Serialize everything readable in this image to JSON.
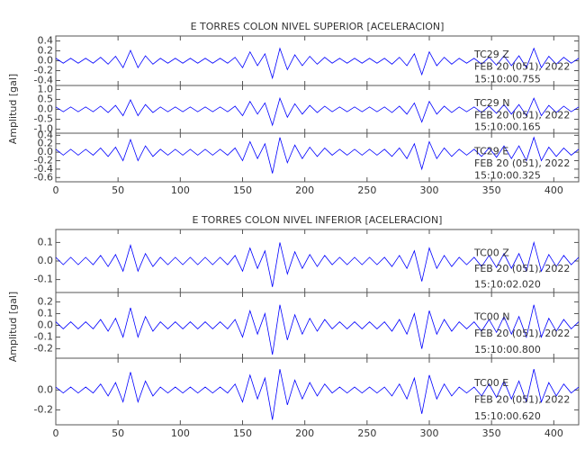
{
  "chart_data": [
    {
      "type": "line",
      "title": "E TORRES COLON NIVEL SUPERIOR [ACELERACION]",
      "y_label": "Amplitud [gal]",
      "x": [
        0,
        6,
        12,
        18,
        24,
        30,
        36,
        42,
        48,
        54,
        60,
        66,
        72,
        78,
        84,
        90,
        96,
        102,
        108,
        114,
        120,
        126,
        132,
        138,
        144,
        150,
        156,
        162,
        168,
        174,
        180,
        186,
        192,
        198,
        204,
        210,
        216,
        222,
        228,
        234,
        240,
        246,
        252,
        258,
        264,
        270,
        276,
        282,
        288,
        294,
        300,
        306,
        312,
        318,
        324,
        330,
        336,
        342,
        348,
        354,
        360,
        366,
        372,
        378,
        384,
        390,
        396,
        402,
        408,
        414,
        420
      ],
      "xlim": [
        0,
        420
      ],
      "xticks": [
        0,
        50,
        100,
        150,
        200,
        250,
        300,
        350,
        400
      ],
      "series": [
        {
          "name": "TC29    Z",
          "date": "FEB 20 (051), 2022",
          "time": "15:10:00.755",
          "color": "#0000ff",
          "ylim": [
            -0.5,
            0.5
          ],
          "yticks": [
            0.4,
            0.2,
            {
              "value": 0,
              "label": "0.0"
            },
            -0.2,
            -0.4
          ],
          "values": [
            0.05,
            -0.05,
            0.05,
            -0.05,
            0.05,
            -0.05,
            0.07,
            -0.07,
            0.09,
            -0.14,
            0.21,
            -0.14,
            0.1,
            -0.07,
            0.05,
            -0.05,
            0.05,
            -0.05,
            0.05,
            -0.05,
            0.05,
            -0.05,
            0.05,
            -0.05,
            0.07,
            -0.14,
            0.18,
            -0.1,
            0.14,
            -0.35,
            0.25,
            -0.18,
            0.12,
            -0.1,
            0.09,
            -0.07,
            0.07,
            -0.05,
            0.05,
            -0.05,
            0.05,
            -0.05,
            0.05,
            -0.05,
            0.05,
            -0.07,
            0.07,
            -0.1,
            0.14,
            -0.28,
            0.18,
            -0.1,
            0.07,
            -0.07,
            0.05,
            -0.05,
            0.05,
            -0.07,
            0.07,
            -0.09,
            0.1,
            -0.1,
            0.1,
            -0.14,
            0.25,
            -0.14,
            0.09,
            -0.07,
            0.07,
            -0.05,
            0.05
          ]
        },
        {
          "name": "TC29    N",
          "date": "FEB 20 (051), 2022",
          "time": "15:10:00.165",
          "color": "#0000ff",
          "ylim": [
            -1.2,
            1.2
          ],
          "yticks": [
            {
              "value": 1,
              "label": "1.0"
            },
            0.5,
            {
              "value": 0,
              "label": "0.0"
            },
            -0.5,
            {
              "value": -1,
              "label": "-1.0"
            }
          ],
          "values": [
            0.12,
            -0.12,
            0.12,
            -0.12,
            0.12,
            -0.12,
            0.16,
            -0.16,
            0.2,
            -0.32,
            0.48,
            -0.32,
            0.24,
            -0.16,
            0.12,
            -0.12,
            0.12,
            -0.12,
            0.12,
            -0.12,
            0.12,
            -0.12,
            0.12,
            -0.12,
            0.16,
            -0.32,
            0.4,
            -0.24,
            0.32,
            -0.8,
            0.56,
            -0.4,
            0.28,
            -0.24,
            0.2,
            -0.16,
            0.16,
            -0.12,
            0.12,
            -0.12,
            0.12,
            -0.12,
            0.12,
            -0.12,
            0.12,
            -0.16,
            0.16,
            -0.24,
            0.32,
            -0.64,
            0.4,
            -0.24,
            0.16,
            -0.16,
            0.12,
            -0.12,
            0.12,
            -0.16,
            0.16,
            -0.2,
            0.24,
            -0.24,
            0.24,
            -0.32,
            0.56,
            -0.32,
            0.2,
            -0.16,
            0.16,
            -0.12,
            0.12
          ]
        },
        {
          "name": "TC29    E",
          "date": "FEB 20 (051), 2022",
          "time": "15:10:00.325",
          "color": "#0000ff",
          "ylim": [
            -0.7,
            0.45
          ],
          "yticks": [
            0.4,
            0.2,
            {
              "value": 0,
              "label": "0.0"
            },
            -0.2,
            -0.4,
            -0.6
          ],
          "values": [
            0.07,
            -0.07,
            0.07,
            -0.07,
            0.07,
            -0.07,
            0.1,
            -0.1,
            0.12,
            -0.2,
            0.3,
            -0.2,
            0.15,
            -0.1,
            0.07,
            -0.07,
            0.07,
            -0.07,
            0.07,
            -0.07,
            0.07,
            -0.07,
            0.07,
            -0.07,
            0.1,
            -0.2,
            0.25,
            -0.15,
            0.2,
            -0.5,
            0.35,
            -0.25,
            0.17,
            -0.15,
            0.12,
            -0.1,
            0.1,
            -0.07,
            0.07,
            -0.07,
            0.07,
            -0.07,
            0.07,
            -0.07,
            0.07,
            -0.1,
            0.1,
            -0.15,
            0.2,
            -0.4,
            0.25,
            -0.15,
            0.1,
            -0.1,
            0.07,
            -0.07,
            0.07,
            -0.1,
            0.1,
            -0.12,
            0.15,
            -0.15,
            0.15,
            -0.2,
            0.35,
            -0.2,
            0.12,
            -0.1,
            0.1,
            -0.07,
            0.07
          ]
        }
      ]
    },
    {
      "type": "line",
      "title": "E TORRES COLON NIVEL INFERIOR [ACELERACION]",
      "y_label": "Amplitud [gal]",
      "x": [
        0,
        6,
        12,
        18,
        24,
        30,
        36,
        42,
        48,
        54,
        60,
        66,
        72,
        78,
        84,
        90,
        96,
        102,
        108,
        114,
        120,
        126,
        132,
        138,
        144,
        150,
        156,
        162,
        168,
        174,
        180,
        186,
        192,
        198,
        204,
        210,
        216,
        222,
        228,
        234,
        240,
        246,
        252,
        258,
        264,
        270,
        276,
        282,
        288,
        294,
        300,
        306,
        312,
        318,
        324,
        330,
        336,
        342,
        348,
        354,
        360,
        366,
        372,
        378,
        384,
        390,
        396,
        402,
        408,
        414,
        420
      ],
      "xlim": [
        0,
        420
      ],
      "xticks": [
        0,
        50,
        100,
        150,
        200,
        250,
        300,
        350,
        400
      ],
      "series": [
        {
          "name": "TC00    Z",
          "date": "FEB 20 (051), 2022",
          "time": "15:10:02.020",
          "color": "#0000ff",
          "ylim": [
            -0.17,
            0.17
          ],
          "yticks": [
            0.1,
            {
              "value": 0,
              "label": "0.0"
            },
            -0.1
          ],
          "values": [
            0.02,
            -0.02,
            0.02,
            -0.02,
            0.02,
            -0.02,
            0.03,
            -0.03,
            0.035,
            -0.055,
            0.085,
            -0.055,
            0.04,
            -0.03,
            0.02,
            -0.02,
            0.02,
            -0.02,
            0.02,
            -0.02,
            0.02,
            -0.02,
            0.02,
            -0.02,
            0.03,
            -0.055,
            0.07,
            -0.04,
            0.055,
            -0.14,
            0.1,
            -0.07,
            0.05,
            -0.04,
            0.035,
            -0.03,
            0.03,
            -0.02,
            0.02,
            -0.02,
            0.02,
            -0.02,
            0.02,
            -0.02,
            0.02,
            -0.03,
            0.03,
            -0.04,
            0.055,
            -0.11,
            0.07,
            -0.04,
            0.03,
            -0.03,
            0.02,
            -0.02,
            0.02,
            -0.03,
            0.03,
            -0.035,
            0.04,
            -0.04,
            0.04,
            -0.055,
            0.1,
            -0.055,
            0.035,
            -0.03,
            0.03,
            -0.02,
            0.02
          ]
        },
        {
          "name": "TC00    N",
          "date": "FEB 20 (051), 2022",
          "time": "15:10:00.800",
          "color": "#0000ff",
          "ylim": [
            -0.28,
            0.28
          ],
          "yticks": [
            0.2,
            0.1,
            {
              "value": 0,
              "label": "0.0"
            },
            -0.1,
            -0.2
          ],
          "values": [
            0.03,
            -0.03,
            0.03,
            -0.03,
            0.03,
            -0.03,
            0.05,
            -0.05,
            0.06,
            -0.1,
            0.15,
            -0.1,
            0.075,
            -0.05,
            0.03,
            -0.03,
            0.03,
            -0.03,
            0.03,
            -0.03,
            0.03,
            -0.03,
            0.03,
            -0.03,
            0.05,
            -0.1,
            0.125,
            -0.075,
            0.1,
            -0.25,
            0.175,
            -0.125,
            0.09,
            -0.075,
            0.06,
            -0.05,
            0.05,
            -0.03,
            0.03,
            -0.03,
            0.03,
            -0.03,
            0.03,
            -0.03,
            0.03,
            -0.05,
            0.05,
            -0.075,
            0.1,
            -0.2,
            0.125,
            -0.075,
            0.05,
            -0.05,
            0.03,
            -0.03,
            0.03,
            -0.05,
            0.05,
            -0.06,
            0.075,
            -0.075,
            0.075,
            -0.1,
            0.175,
            -0.1,
            0.06,
            -0.05,
            0.05,
            -0.03,
            0.03
          ]
        },
        {
          "name": "TC00    E",
          "date": "FEB 20 (051), 2022",
          "time": "15:10:00.620",
          "color": "#0000ff",
          "ylim": [
            -0.35,
            0.32
          ],
          "yticks": [
            {
              "value": 0,
              "label": "0.0"
            },
            -0.2
          ],
          "values": [
            0.03,
            -0.03,
            0.03,
            -0.03,
            0.03,
            -0.03,
            0.06,
            -0.06,
            0.075,
            -0.12,
            0.18,
            -0.12,
            0.09,
            -0.06,
            0.03,
            -0.03,
            0.03,
            -0.03,
            0.03,
            -0.03,
            0.03,
            -0.03,
            0.03,
            -0.03,
            0.06,
            -0.12,
            0.15,
            -0.09,
            0.12,
            -0.3,
            0.21,
            -0.15,
            0.1,
            -0.09,
            0.075,
            -0.06,
            0.06,
            -0.03,
            0.03,
            -0.03,
            0.03,
            -0.03,
            0.03,
            -0.03,
            0.03,
            -0.06,
            0.06,
            -0.09,
            0.12,
            -0.24,
            0.15,
            -0.09,
            0.06,
            -0.06,
            0.03,
            -0.03,
            0.03,
            -0.06,
            0.06,
            -0.075,
            0.09,
            -0.09,
            0.09,
            -0.12,
            0.21,
            -0.12,
            0.075,
            -0.06,
            0.06,
            -0.03,
            0.03
          ]
        }
      ]
    }
  ]
}
